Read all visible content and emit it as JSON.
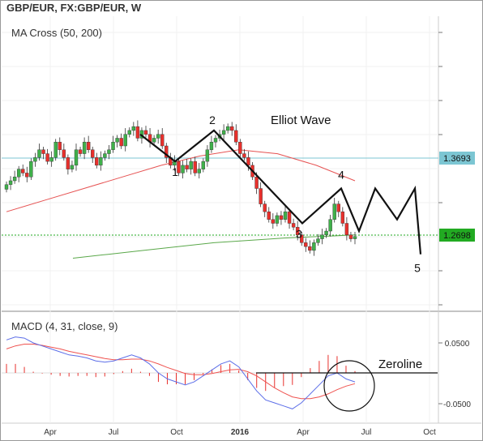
{
  "header": {
    "symbol_title": "GBP/EUR, FX:GBP/EUR, W",
    "price_indicator": "MA Cross (50, 200)",
    "macd_indicator": "MACD (4, 31, close, 9)"
  },
  "colors": {
    "up": "#3fb04a",
    "down": "#e8302c",
    "ma_fast": "#e65252",
    "ma_slow": "#5aa84a",
    "macd_line": "#5c6ee8",
    "signal_line": "#ef5350",
    "hist": "#e8302c",
    "wave": "#111111",
    "ref_line_blue": "#7cc6d3",
    "ref_line_green": "#22aa22",
    "axis_text": "#333333"
  },
  "annotations": {
    "wave_title": "Elliot Wave",
    "wave_labels": [
      "1",
      "2",
      "3",
      "4",
      "5"
    ],
    "zeroline_label": "Zeroline"
  },
  "chart_data": [
    {
      "type": "candlestick",
      "title": "GBP/EUR, FX:GBP/EUR, W",
      "price_tags": [
        "1.3693",
        "1.2698"
      ],
      "y_ticks": [],
      "x_ticks": [
        "Apr",
        "Jul",
        "Oct",
        "2016",
        "Apr",
        "Jul",
        "Oct"
      ],
      "reference_lines": [
        1.3693,
        1.2698
      ],
      "ohlc_close": [
        1.335,
        1.34,
        1.345,
        1.355,
        1.35,
        1.345,
        1.365,
        1.37,
        1.38,
        1.375,
        1.365,
        1.37,
        1.39,
        1.38,
        1.37,
        1.355,
        1.36,
        1.38,
        1.375,
        1.39,
        1.38,
        1.37,
        1.36,
        1.37,
        1.375,
        1.38,
        1.39,
        1.395,
        1.385,
        1.4,
        1.405,
        1.41,
        1.395,
        1.405,
        1.4,
        1.39,
        1.395,
        1.4,
        1.385,
        1.37,
        1.36,
        1.365,
        1.35,
        1.36,
        1.355,
        1.365,
        1.35,
        1.355,
        1.365,
        1.38,
        1.39,
        1.395,
        1.4,
        1.405,
        1.41,
        1.405,
        1.39,
        1.375,
        1.37,
        1.36,
        1.345,
        1.33,
        1.31,
        1.3,
        1.29,
        1.285,
        1.295,
        1.29,
        1.3,
        1.285,
        1.28,
        1.27,
        1.26,
        1.255,
        1.25,
        1.26,
        1.265,
        1.27,
        1.275,
        1.29,
        1.31,
        1.3,
        1.285,
        1.27,
        1.265,
        1.268
      ],
      "moving_averages": [
        {
          "name": "MA 50",
          "values": [
            1.3,
            1.315,
            1.33,
            1.345,
            1.36,
            1.372,
            1.38,
            1.375,
            1.36,
            1.34
          ]
        },
        {
          "name": "MA 200",
          "values": [
            1.24,
            1.245,
            1.25,
            1.255,
            1.26,
            1.263,
            1.266,
            1.268,
            1.27
          ]
        }
      ],
      "elliott_wave_points": [
        {
          "label": "",
          "price": 1.4
        },
        {
          "label": "1",
          "price": 1.365
        },
        {
          "label": "2",
          "price": 1.405
        },
        {
          "label": "3",
          "price": 1.285
        },
        {
          "label": "4",
          "price": 1.33
        },
        {
          "label": "",
          "price": 1.275
        },
        {
          "label": "",
          "price": 1.33
        },
        {
          "label": "",
          "price": 1.29
        },
        {
          "label": "",
          "price": 1.33
        },
        {
          "label": "5",
          "price": 1.245
        }
      ]
    },
    {
      "type": "macd",
      "title": "MACD (4, 31, close, 9)",
      "y_ticks": [
        "0.0500",
        "-0.0500"
      ],
      "zero_line": 0,
      "macd": [
        0.055,
        0.06,
        0.058,
        0.05,
        0.045,
        0.04,
        0.035,
        0.03,
        0.028,
        0.025,
        0.02,
        0.018,
        0.02,
        0.025,
        0.03,
        0.025,
        0.015,
        0.0,
        -0.01,
        -0.015,
        -0.02,
        -0.015,
        -0.005,
        0.005,
        0.015,
        0.02,
        0.01,
        -0.01,
        -0.03,
        -0.045,
        -0.05,
        -0.055,
        -0.06,
        -0.05,
        -0.035,
        -0.02,
        -0.005,
        0.0,
        -0.01,
        -0.015
      ],
      "signal": [
        0.04,
        0.045,
        0.048,
        0.048,
        0.046,
        0.043,
        0.04,
        0.036,
        0.033,
        0.03,
        0.027,
        0.024,
        0.022,
        0.022,
        0.023,
        0.023,
        0.02,
        0.015,
        0.009,
        0.004,
        -0.001,
        -0.003,
        -0.003,
        -0.001,
        0.002,
        0.005,
        0.006,
        0.002,
        -0.005,
        -0.015,
        -0.025,
        -0.033,
        -0.04,
        -0.043,
        -0.043,
        -0.04,
        -0.035,
        -0.028,
        -0.022,
        -0.018
      ],
      "histogram": [
        0.015,
        0.015,
        0.01,
        0.002,
        -0.001,
        -0.003,
        -0.005,
        -0.006,
        -0.005,
        -0.005,
        -0.007,
        -0.006,
        -0.002,
        0.003,
        0.007,
        0.002,
        -0.005,
        -0.015,
        -0.019,
        -0.019,
        -0.019,
        -0.012,
        -0.002,
        0.006,
        0.013,
        0.015,
        0.004,
        -0.012,
        -0.025,
        -0.03,
        -0.025,
        -0.022,
        -0.02,
        -0.007,
        0.008,
        0.02,
        0.03,
        0.028,
        0.012,
        0.003
      ]
    }
  ]
}
